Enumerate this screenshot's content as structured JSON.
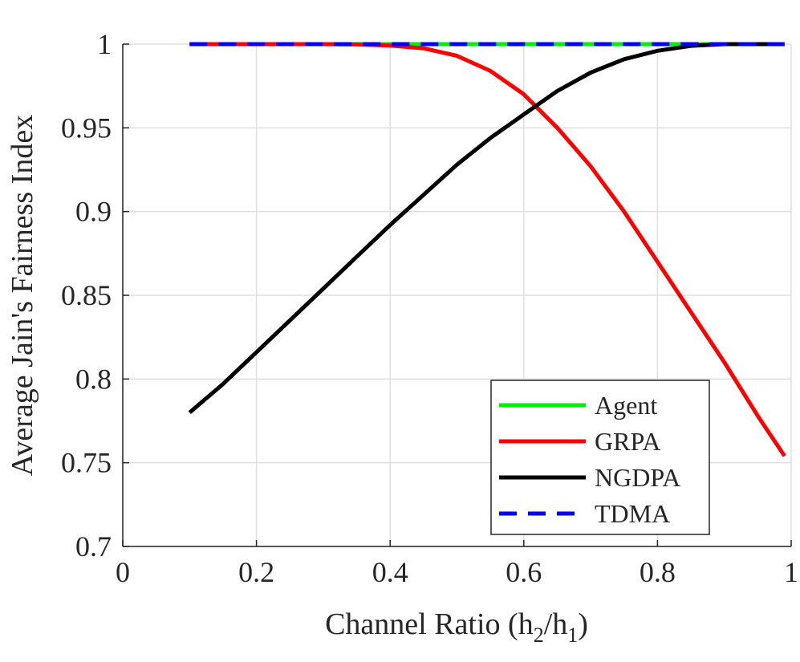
{
  "chart_data": {
    "type": "line",
    "xlabel": "Channel Ratio (h",
    "xlabel_sub1": "2",
    "xlabel_mid": "/h",
    "xlabel_sub2": "1",
    "xlabel_end": ")",
    "ylabel": "Average Jain's Fairness Index",
    "xlim": [
      0,
      1
    ],
    "ylim": [
      0.7,
      1
    ],
    "xticks": [
      0,
      0.2,
      0.4,
      0.6,
      0.8,
      1
    ],
    "xtick_labels": [
      "0",
      "0.2",
      "0.4",
      "0.6",
      "0.8",
      "1"
    ],
    "yticks": [
      0.7,
      0.75,
      0.8,
      0.85,
      0.9,
      0.95,
      1
    ],
    "ytick_labels": [
      "0.7",
      "0.75",
      "0.8",
      "0.85",
      "0.9",
      "0.95",
      "1"
    ],
    "grid": true,
    "legend_position": "bottom-right",
    "x": [
      0.1,
      0.15,
      0.2,
      0.25,
      0.3,
      0.35,
      0.4,
      0.45,
      0.5,
      0.55,
      0.6,
      0.65,
      0.7,
      0.75,
      0.8,
      0.85,
      0.9,
      0.95,
      0.99
    ],
    "series": [
      {
        "name": "Agent",
        "color": "#00ee00",
        "dashed": false,
        "values": [
          1,
          1,
          1,
          1,
          1,
          1,
          1,
          1,
          1,
          1,
          1,
          1,
          1,
          1,
          1,
          1,
          1,
          1,
          1
        ]
      },
      {
        "name": "GRPA",
        "color": "#ff0000",
        "dashed": false,
        "values": [
          1,
          1,
          1,
          1,
          1,
          0.9998,
          0.9992,
          0.9975,
          0.993,
          0.984,
          0.97,
          0.95,
          0.927,
          0.9,
          0.87,
          0.84,
          0.81,
          0.778,
          0.754
        ]
      },
      {
        "name": "NGDPA",
        "color": "#000000",
        "dashed": false,
        "values": [
          0.78,
          0.797,
          0.816,
          0.835,
          0.854,
          0.873,
          0.892,
          0.91,
          0.928,
          0.944,
          0.958,
          0.972,
          0.983,
          0.991,
          0.996,
          0.999,
          1,
          1,
          1
        ]
      },
      {
        "name": "TDMA",
        "color": "#0000ff",
        "dashed": true,
        "values": [
          1,
          1,
          1,
          1,
          1,
          1,
          1,
          1,
          1,
          1,
          1,
          1,
          1,
          1,
          1,
          1,
          1,
          1,
          1
        ]
      }
    ]
  }
}
